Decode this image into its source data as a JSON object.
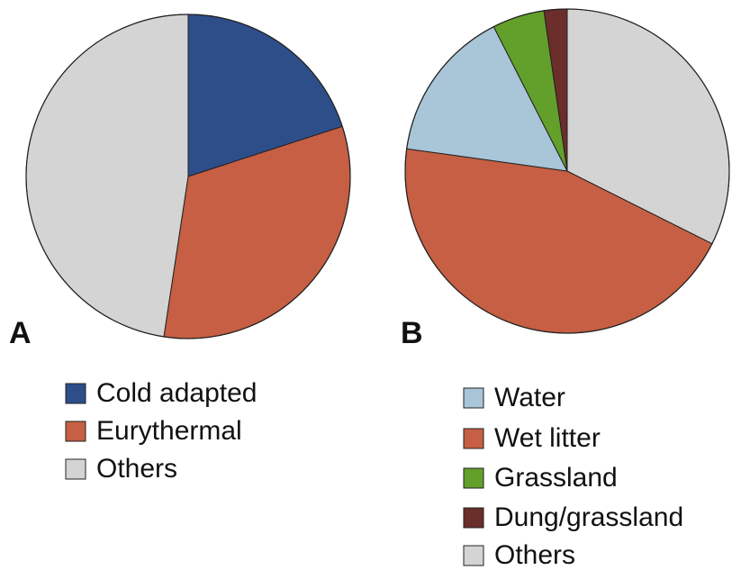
{
  "chart_data": [
    {
      "type": "pie",
      "label": "A",
      "categories": [
        "Cold adapted",
        "Eurythermal",
        "Others"
      ],
      "values": [
        20,
        32.4,
        47.6
      ],
      "colors": [
        "#2e4e8a",
        "#c65f43",
        "#d4d4d4"
      ]
    },
    {
      "type": "pie",
      "label": "B",
      "categories": [
        "Others",
        "Wet litter",
        "Water",
        "Grassland",
        "Dung/grassland"
      ],
      "values": [
        32.4,
        44.8,
        15.3,
        5.2,
        2.3
      ],
      "colors": [
        "#d4d4d4",
        "#c65f43",
        "#a9c5d8",
        "#63a02b",
        "#6b2e2b"
      ]
    }
  ]
}
